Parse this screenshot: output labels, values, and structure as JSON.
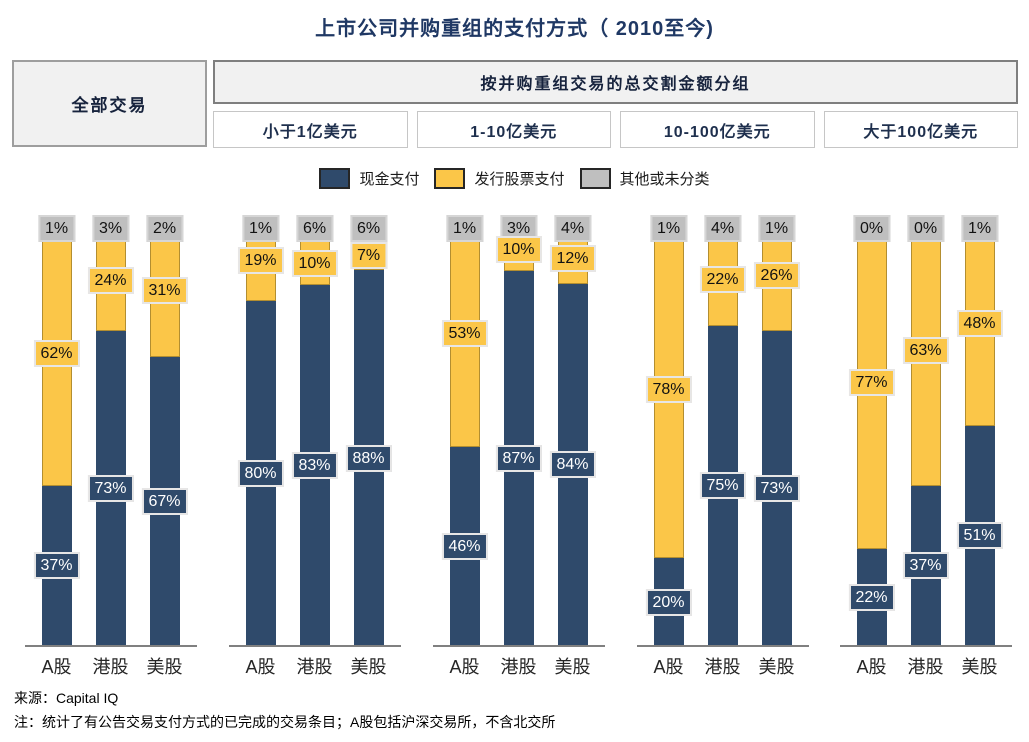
{
  "title": "上市公司并购重组的支付方式（ 2010至今)",
  "table_header": {
    "all_label": "全部交易",
    "group_label": "按并购重组交易的总交割金额分组",
    "buckets": [
      "小于1亿美元",
      "1-10亿美元",
      "10-100亿美元",
      "大于100亿美元"
    ]
  },
  "legend": [
    {
      "key": "cash",
      "label": "现金支付",
      "color": "#2F4A6B"
    },
    {
      "key": "stock",
      "label": "发行股票支付",
      "color": "#FBC648"
    },
    {
      "key": "other",
      "label": "其他或未分类",
      "color": "#BFBFBF"
    }
  ],
  "footer": {
    "source": "来源：Capital IQ",
    "note": "注：统计了有公告交易支付方式的已完成的交易条目；A股包括沪深交易所，不含北交所"
  },
  "chart_data": {
    "type": "bar",
    "stacked": true,
    "percent": true,
    "title": "上市公司并购重组的支付方式（2010至今)",
    "categories": [
      "A股",
      "港股",
      "美股"
    ],
    "series_keys": [
      "cash",
      "stock",
      "other"
    ],
    "series_labels": {
      "cash": "现金支付",
      "stock": "发行股票支付",
      "other": "其他或未分类"
    },
    "colors": {
      "cash": "#2F4A6B",
      "stock": "#FBC648",
      "other": "#BFBFBF"
    },
    "unit": "%",
    "ylim": [
      0,
      100
    ],
    "grid": false,
    "legend_position": "top",
    "groups": [
      {
        "label": "全部交易",
        "bars": [
          {
            "category": "A股",
            "cash": 37,
            "stock": 62,
            "other": 1
          },
          {
            "category": "港股",
            "cash": 73,
            "stock": 24,
            "other": 3
          },
          {
            "category": "美股",
            "cash": 67,
            "stock": 31,
            "other": 2
          }
        ]
      },
      {
        "label": "小于1亿美元",
        "bars": [
          {
            "category": "A股",
            "cash": 80,
            "stock": 19,
            "other": 1
          },
          {
            "category": "港股",
            "cash": 83,
            "stock": 10,
            "other": 6
          },
          {
            "category": "美股",
            "cash": 88,
            "stock": 7,
            "other": 6
          }
        ]
      },
      {
        "label": "1-10亿美元",
        "bars": [
          {
            "category": "A股",
            "cash": 46,
            "stock": 53,
            "other": 1
          },
          {
            "category": "港股",
            "cash": 87,
            "stock": 10,
            "other": 3
          },
          {
            "category": "美股",
            "cash": 84,
            "stock": 12,
            "other": 4
          }
        ]
      },
      {
        "label": "10-100亿美元",
        "bars": [
          {
            "category": "A股",
            "cash": 20,
            "stock": 78,
            "other": 1
          },
          {
            "category": "港股",
            "cash": 75,
            "stock": 22,
            "other": 4
          },
          {
            "category": "美股",
            "cash": 73,
            "stock": 26,
            "other": 1
          }
        ]
      },
      {
        "label": "大于100亿美元",
        "bars": [
          {
            "category": "A股",
            "cash": 22,
            "stock": 77,
            "other": 0
          },
          {
            "category": "港股",
            "cash": 37,
            "stock": 63,
            "other": 0
          },
          {
            "category": "美股",
            "cash": 51,
            "stock": 48,
            "other": 1
          }
        ]
      }
    ]
  }
}
